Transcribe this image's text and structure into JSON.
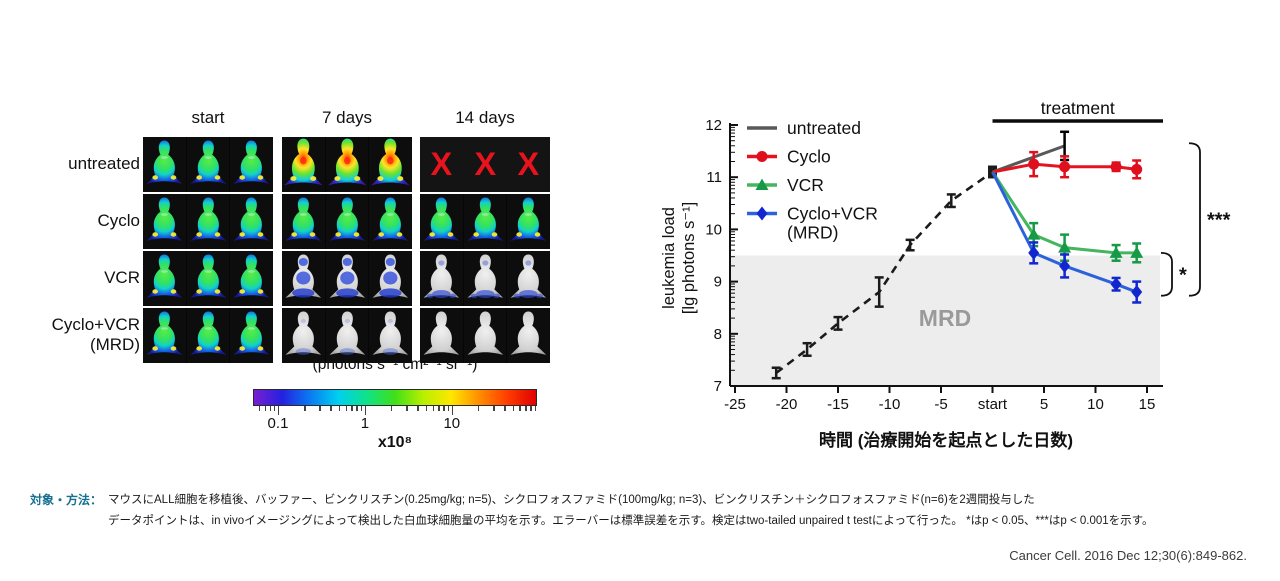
{
  "imaging": {
    "col_headers": [
      "start",
      "7 days",
      "14 days"
    ],
    "rows": [
      {
        "label": "untreated",
        "levels": [
          "green",
          "hot",
          "dead"
        ]
      },
      {
        "label": "Cyclo",
        "levels": [
          "green",
          "green",
          "green"
        ]
      },
      {
        "label": "VCR",
        "levels": [
          "green",
          "blue",
          "bluelow"
        ]
      },
      {
        "label": "Cyclo+VCR",
        "label2": "(MRD)",
        "levels": [
          "green",
          "faint",
          "gray"
        ]
      }
    ],
    "dead_marker": "X",
    "dead_marker_color": "#e8131d",
    "colorbar": {
      "title": "(photons s⁻¹ cm²⁻¹ sr⁻¹)",
      "tick_labels": [
        "0.1",
        "1",
        "10"
      ],
      "multiplier": "x10⁸",
      "gradient": [
        "#7a1fd0",
        "#2421e0",
        "#0a7cf2",
        "#00d0f0",
        "#0fe28a",
        "#40e018",
        "#b8ef00",
        "#ffe600",
        "#ff8c00",
        "#ff3c00",
        "#e00000"
      ]
    }
  },
  "chart_data": {
    "type": "line",
    "title": "",
    "xlabel": "時間 (治療開始を起点とした日数)",
    "ylabel_lines": [
      "leukemia load",
      "[lg photons s⁻¹]"
    ],
    "xlim": [
      -25,
      15
    ],
    "ylim": [
      7,
      12
    ],
    "x_ticks": [
      -25,
      -20,
      -15,
      -10,
      -5,
      0,
      5,
      10,
      15
    ],
    "x_tick_labels": [
      "-25",
      "-20",
      "-15",
      "-10",
      "-5",
      "start",
      "5",
      "10",
      "15"
    ],
    "y_ticks": [
      7,
      8,
      9,
      10,
      11,
      12
    ],
    "y_minor": "log",
    "legend_position": "top-left",
    "treatment": {
      "label": "treatment",
      "from": 0,
      "to": 16.5
    },
    "mrd": {
      "label": "MRD",
      "y_max": 9.5
    },
    "series": [
      {
        "name": "pre-treatment",
        "dashed": true,
        "color": "#1b1b1b",
        "line_color": "#1b1b1b",
        "marker": "none",
        "end_marker": "square",
        "in_legend": false,
        "x": [
          -21,
          -18,
          -15,
          -11,
          -8,
          -4,
          0
        ],
        "y": [
          7.25,
          7.7,
          8.2,
          8.8,
          9.7,
          10.55,
          11.1
        ],
        "err": [
          0.1,
          0.12,
          0.12,
          0.28,
          0.1,
          0.12,
          0.1
        ]
      },
      {
        "name": "untreated",
        "color": "#000000",
        "line_color": "#58585a",
        "marker": "none",
        "in_legend": true,
        "x": [
          0,
          7
        ],
        "y": [
          11.1,
          11.6
        ],
        "err": [
          0,
          0.27
        ]
      },
      {
        "name": "Cyclo",
        "color": "#e00f1e",
        "line_color": "#e4131f",
        "marker": "circle",
        "in_legend": true,
        "x": [
          0,
          4,
          7,
          12,
          14
        ],
        "y": [
          11.1,
          11.25,
          11.2,
          11.2,
          11.15
        ],
        "err": [
          0,
          0.23,
          0.2,
          0.08,
          0.17
        ]
      },
      {
        "name": "VCR",
        "color": "#169a48",
        "line_color": "#45b55f",
        "marker": "triangle",
        "in_legend": true,
        "x": [
          0,
          4,
          7,
          12,
          14
        ],
        "y": [
          11.1,
          9.9,
          9.65,
          9.55,
          9.55
        ],
        "err": [
          0,
          0.22,
          0.25,
          0.15,
          0.18
        ]
      },
      {
        "name": "Cyclo+VCR",
        "name2": "(MRD)",
        "color": "#1226cf",
        "line_color": "#2b62dc",
        "marker": "diamond",
        "in_legend": true,
        "x": [
          0,
          4,
          7,
          12,
          14
        ],
        "y": [
          11.1,
          9.55,
          9.3,
          8.95,
          8.8
        ],
        "err": [
          0,
          0.2,
          0.22,
          0.12,
          0.2
        ]
      }
    ],
    "significance": [
      {
        "label": "***",
        "y_top": 11.65,
        "y_bottom": 8.73,
        "tier": 2
      },
      {
        "label": "*",
        "y_top": 9.55,
        "y_bottom": 8.73,
        "tier": 1
      }
    ]
  },
  "methods": {
    "label": "対象・方法：",
    "label_color": "#17708f",
    "line1": "マウスにALL細胞を移植後、バッファー、ビンクリスチン(0.25mg/kg; n=5)、シクロフォスファミド(100mg/kg; n=3)、ビンクリスチン＋シクロフォスファミド(n=6)を2週間投与した",
    "line2": "データポイントは、in vivoイメージングによって検出した白血球細胞量の平均を示す。エラーバーは標準誤差を示す。検定はtwo-tailed unpaired t testによって行った。 *はp < 0.05、***はp < 0.001を示す。"
  },
  "citation": "Cancer Cell. 2016 Dec 12;30(6):849-862."
}
